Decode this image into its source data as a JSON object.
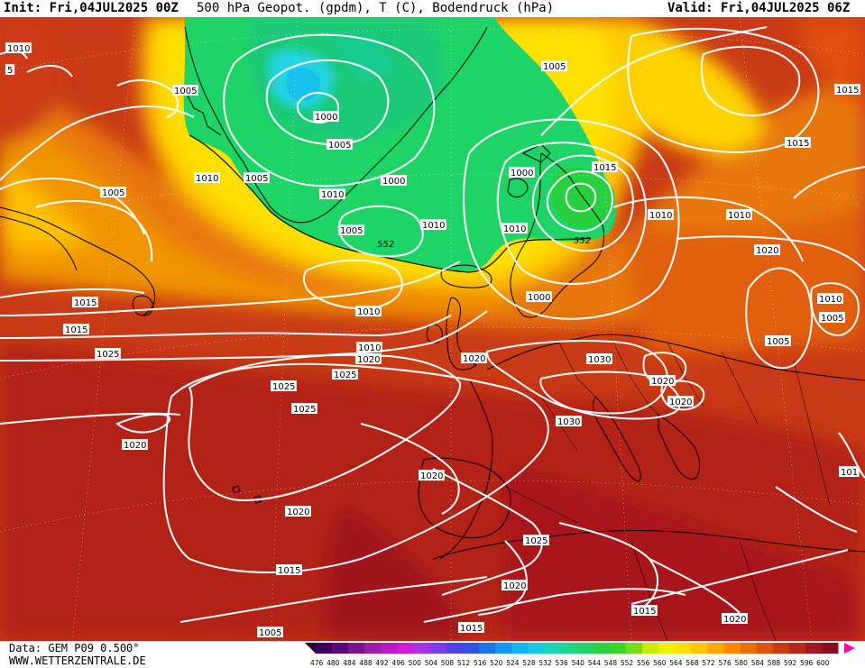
{
  "header": {
    "init": "Init: Fri,04JUL2025 00Z",
    "title": "500 hPa Geopot. (gpdm), T (C), Bodendruck (hPa)",
    "valid": "Valid: Fri,04JUL2025 06Z"
  },
  "footer": {
    "data_source": "Data: GEM P09 0.500°",
    "website": "WWW.WETTERZENTRALE.DE"
  },
  "legend": {
    "ticks": [
      "476",
      "480",
      "484",
      "488",
      "492",
      "496",
      "500",
      "504",
      "508",
      "512",
      "516",
      "520",
      "524",
      "528",
      "532",
      "536",
      "540",
      "544",
      "548",
      "552",
      "556",
      "560",
      "564",
      "568",
      "572",
      "576",
      "580",
      "584",
      "588",
      "592",
      "596",
      "600"
    ],
    "colors": [
      "#3c005a",
      "#5a0a78",
      "#7a148e",
      "#9a1fa8",
      "#b81cc4",
      "#d41cd8",
      "#a832e6",
      "#7c3cf0",
      "#5040ee",
      "#3050ea",
      "#2070f0",
      "#1496f0",
      "#12b4ec",
      "#14cce0",
      "#16d6b8",
      "#18d890",
      "#1ed466",
      "#28d040",
      "#3cd228",
      "#78dc14",
      "#c8ec00",
      "#f0f000",
      "#ffe000",
      "#ffc800",
      "#ffa600",
      "#f88a00",
      "#ee6c08",
      "#e05010",
      "#cc3a16",
      "#b8281a",
      "#a0181e",
      "#880c22"
    ],
    "left_arrow_color": "#2a003c",
    "right_arrow_color": "#ff00b4"
  },
  "pressure_labels": [
    "1010",
    "5",
    "1005",
    "1000",
    "1005",
    "1005",
    "1010",
    "1000",
    "1010",
    "1005",
    "1005",
    "1010",
    "1000",
    "1015",
    "1005",
    "1010",
    "1015",
    "1015",
    "1010",
    "1010",
    "1020",
    "1000",
    "1010",
    "1015",
    "1015",
    "1020",
    "1025",
    "1020",
    "1025",
    "1030",
    "1025",
    "1025",
    "1020",
    "1020",
    "1020",
    "1030",
    "1020",
    "1020",
    "1025",
    "1020",
    "1015",
    "1015",
    "1020",
    "1010",
    "1005",
    "1015",
    "101",
    "1005",
    "1005",
    "1010"
  ],
  "geopotential_labels": [
    "552",
    "552"
  ],
  "colors": {
    "green_low": "#1ed466",
    "yellow": "#f0f000",
    "orange": "#ffa600",
    "red_high": "#b8281a",
    "isobar": "#ffffff",
    "coast": "#000000"
  }
}
